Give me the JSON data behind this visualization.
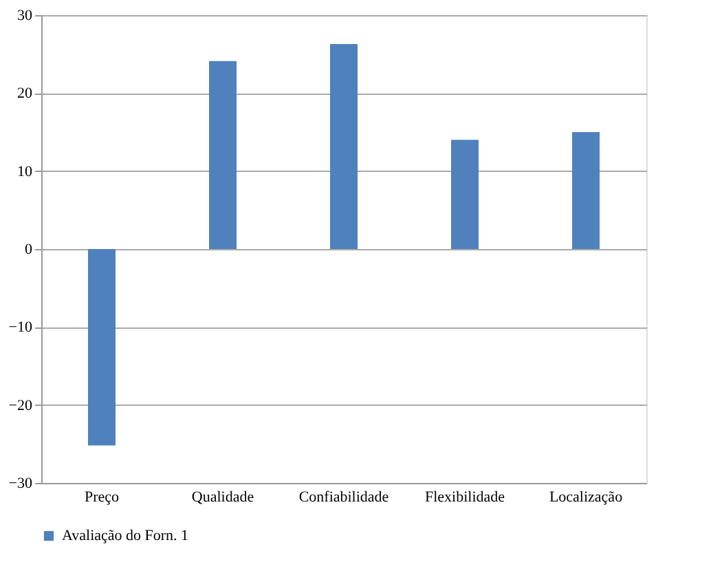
{
  "chart_data": {
    "type": "bar",
    "categories": [
      "Preço",
      "Qualidade",
      "Confiabilidade",
      "Flexibilidade",
      "Localização"
    ],
    "series": [
      {
        "name": "Avaliação do Forn. 1",
        "color": "#4f81bd",
        "values": [
          -25.2,
          24.1,
          26.3,
          14.0,
          15.0
        ]
      }
    ],
    "ylim": [
      -30,
      30
    ],
    "yticks": [
      -30,
      -20,
      -10,
      0,
      10,
      20,
      30
    ],
    "grid": "y",
    "legend": "bottom"
  }
}
